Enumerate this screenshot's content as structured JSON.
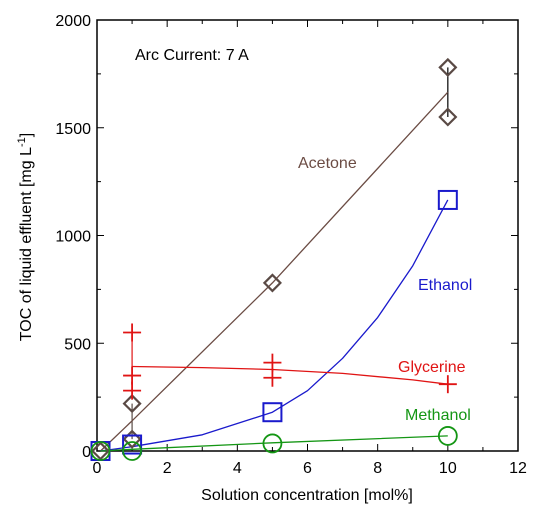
{
  "chart_data": {
    "type": "scatter",
    "title": "",
    "annotation": "Arc Current: 7 A",
    "xlabel": "Solution concentration [mol%]",
    "ylabel_main": "TOC of liquid effluent [mg L",
    "ylabel_sup": "-1",
    "ylabel_end": "]",
    "xlim": [
      0,
      12
    ],
    "ylim": [
      0,
      2000
    ],
    "xticks": [
      "0",
      "2",
      "4",
      "6",
      "8",
      "10",
      "12"
    ],
    "yticks": [
      "0",
      "500",
      "1000",
      "1500",
      "2000"
    ],
    "grid": false,
    "series": [
      {
        "name": "Acetone",
        "marker": "diamond",
        "color": "#6b4c44",
        "markerEdge": "#5a4a45",
        "points": [
          [
            0.1,
            0
          ],
          [
            1,
            220
          ],
          [
            1,
            55
          ],
          [
            5,
            780
          ],
          [
            10,
            1780
          ],
          [
            10,
            1550
          ]
        ],
        "fit": [
          [
            0.1,
            0
          ],
          [
            1,
            140
          ],
          [
            5,
            780
          ],
          [
            10,
            1665
          ]
        ]
      },
      {
        "name": "Ethanol",
        "marker": "square",
        "color": "#1a1acc",
        "points": [
          [
            0.1,
            0
          ],
          [
            1,
            30
          ],
          [
            5,
            180
          ],
          [
            10,
            1165
          ]
        ],
        "fit": [
          [
            0.1,
            0
          ],
          [
            1,
            20
          ],
          [
            3,
            75
          ],
          [
            5,
            180
          ],
          [
            6,
            280
          ],
          [
            7,
            430
          ],
          [
            8,
            620
          ],
          [
            9,
            860
          ],
          [
            10,
            1165
          ]
        ]
      },
      {
        "name": "Glycerine",
        "marker": "plus",
        "color": "#e01414",
        "points": [
          [
            1,
            550
          ],
          [
            1,
            350
          ],
          [
            1,
            280
          ],
          [
            5,
            410
          ],
          [
            5,
            340
          ],
          [
            10,
            310
          ]
        ],
        "fit": [
          [
            1,
            392
          ],
          [
            3,
            387
          ],
          [
            5,
            378
          ],
          [
            7,
            360
          ],
          [
            9,
            330
          ],
          [
            10,
            310
          ]
        ]
      },
      {
        "name": "Methanol",
        "marker": "circle",
        "color": "#149614",
        "points": [
          [
            0.1,
            0
          ],
          [
            1,
            0
          ],
          [
            5,
            35
          ],
          [
            10,
            70
          ]
        ],
        "fit": [
          [
            0.1,
            0
          ],
          [
            1,
            8
          ],
          [
            5,
            38
          ],
          [
            10,
            70
          ]
        ]
      }
    ]
  }
}
